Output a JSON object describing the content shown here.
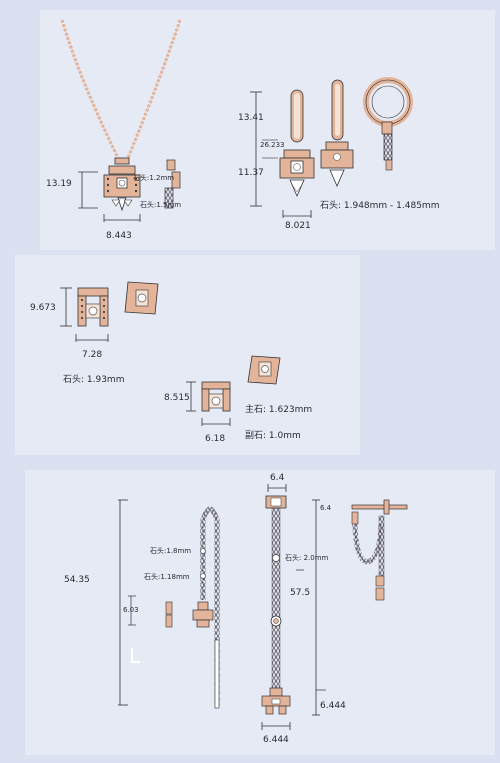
{
  "necklace": {
    "dim_height": "13.19",
    "dim_width": "8.443",
    "stone_top": "石头:1.2mm",
    "stone_bottom": "石头:1.5mm"
  },
  "hoop_earrings": {
    "dim_top": "13.41",
    "dim_mid": "26.233",
    "dim_bottom": "11.37",
    "dim_width": "8.021",
    "stone_note": "石头: 1.948mm - 1.485mm"
  },
  "stud_pair_a": {
    "dim_height": "9.673",
    "dim_width": "7.28",
    "stone_note": "石头: 1.93mm"
  },
  "stud_pair_b": {
    "dim_height": "8.515",
    "dim_width": "6.18",
    "main_stone": "主石: 1.623mm",
    "side_stone": "副石: 1.0mm"
  },
  "threader_earrings": {
    "dim_total": "54.35",
    "dim_pendant": "6.03",
    "stone_upper": "石头:1.8mm",
    "stone_lower": "石头:1.18mm"
  },
  "long_drop": {
    "dim_top_width": "6.4",
    "stone_note": "石头: 2.0mm",
    "dim_length": "57.5",
    "dim_bottom_width": "6.444"
  },
  "ear_jacket": {
    "dim_top": "6.4",
    "dim_bottom": "6.444"
  },
  "colors": {
    "paper": "#e6eaf5",
    "background": "#dbe1f0",
    "rose_gold": "#e3b49a",
    "rose_dark": "#b07c64",
    "chain": "#555059",
    "ink": "#2a2a33"
  }
}
